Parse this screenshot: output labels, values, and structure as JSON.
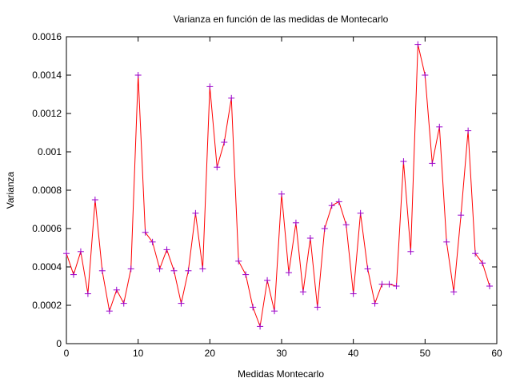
{
  "chart_data": {
    "type": "line",
    "title": "Varianza en función de las medidas de Montecarlo",
    "xlabel": "Medidas Montecarlo",
    "ylabel": "Varianza",
    "xlim": [
      0,
      60
    ],
    "ylim": [
      0,
      0.0016
    ],
    "x_ticks": [
      0,
      10,
      20,
      30,
      40,
      50,
      60
    ],
    "x_tick_labels": [
      "0",
      "10",
      "20",
      "30",
      "40",
      "50",
      "60"
    ],
    "y_ticks": [
      0,
      0.0002,
      0.0004,
      0.0006,
      0.0008,
      0.001,
      0.0012,
      0.0014,
      0.0016
    ],
    "y_tick_labels": [
      "0",
      "0.0002",
      "0.0004",
      "0.0006",
      "0.0008",
      "0.001",
      "0.0012",
      "0.0014",
      "0.0016"
    ],
    "grid": false,
    "line_color": "#ff0000",
    "marker_color": "#9900cc",
    "marker": "plus",
    "series": [
      {
        "x": [
          0,
          1,
          2,
          3,
          4,
          5,
          6,
          7,
          8,
          9,
          10,
          11,
          12,
          13,
          14,
          15,
          16,
          17,
          18,
          19,
          20,
          21,
          22,
          23,
          24,
          25,
          26,
          27,
          28,
          29,
          30,
          31,
          32,
          33,
          34,
          35,
          36,
          37,
          38,
          39,
          40,
          41,
          42,
          43,
          44,
          45,
          46,
          47,
          48,
          49,
          50,
          51,
          52,
          53,
          54,
          55,
          56,
          57,
          58,
          59
        ],
        "values": [
          0.00047,
          0.00036,
          0.00048,
          0.00026,
          0.00075,
          0.00038,
          0.00017,
          0.00028,
          0.00021,
          0.00039,
          0.0014,
          0.00058,
          0.00053,
          0.00039,
          0.00049,
          0.00038,
          0.00021,
          0.00038,
          0.00068,
          0.00039,
          0.00134,
          0.00092,
          0.00105,
          0.00128,
          0.00043,
          0.00036,
          0.00019,
          9e-05,
          0.00033,
          0.00017,
          0.00078,
          0.00037,
          0.00063,
          0.00027,
          0.00055,
          0.00019,
          0.0006,
          0.00072,
          0.00074,
          0.00062,
          0.00026,
          0.00068,
          0.00039,
          0.00021,
          0.00031,
          0.00031,
          0.0003,
          0.00095,
          0.00048,
          0.00156,
          0.0014,
          0.00094,
          0.00113,
          0.00053,
          0.00027,
          0.00067,
          0.00111,
          0.00047,
          0.00042,
          0.0003
        ]
      }
    ]
  }
}
